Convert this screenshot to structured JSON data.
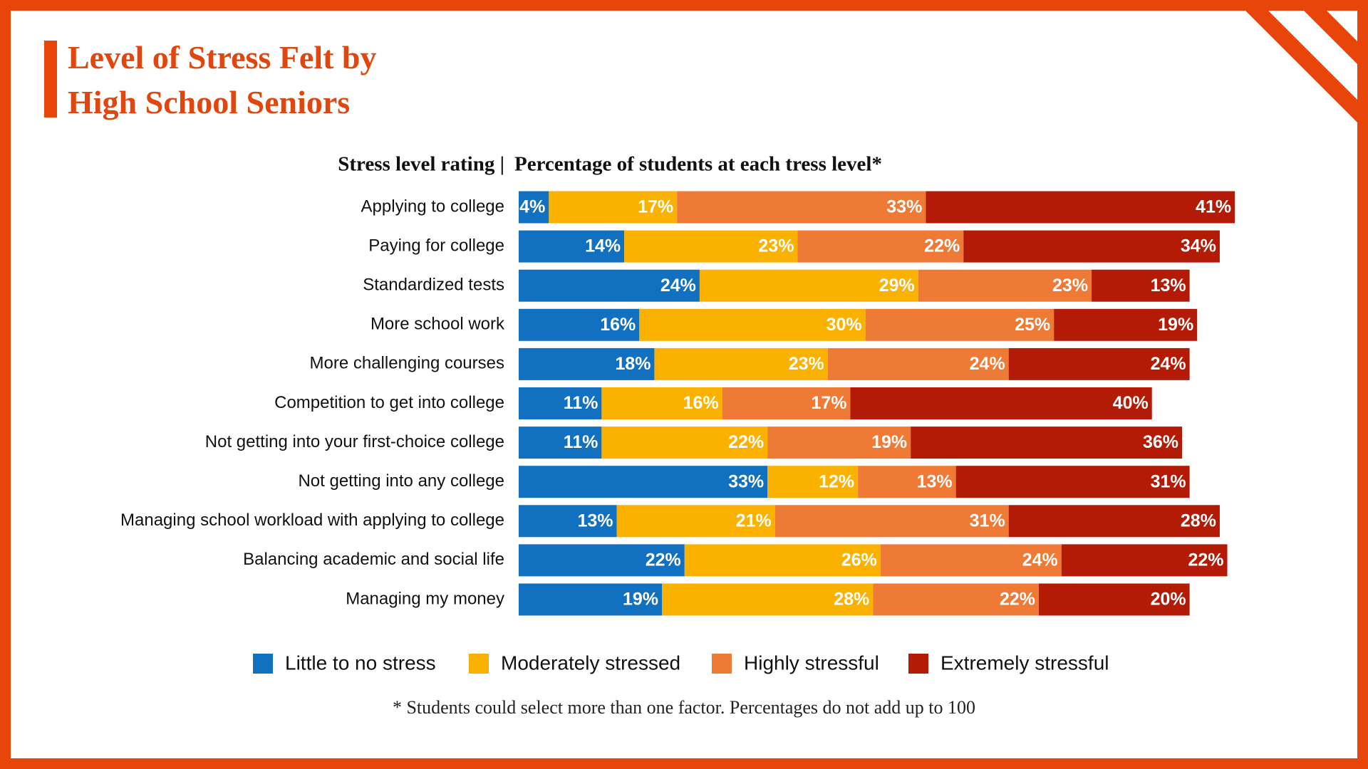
{
  "chart_data": {
    "type": "stacked-barh",
    "title": [
      "Level of Stress Felt by",
      "High School Seniors"
    ],
    "category_header": "Stress level rating |",
    "value_header": "Percentage of students at each tress level*",
    "footnote": "* Students could select more than one factor. Percentages do not add up to 100",
    "categories": [
      "Applying to college",
      "Paying for college",
      "Standardized tests",
      "More school work",
      "More challenging courses",
      "Competition to get into college",
      "Not getting into your first-choice college",
      "Not getting into any college",
      "Managing school workload with applying to college",
      "Balancing academic and social life",
      "Managing my money"
    ],
    "series": [
      {
        "name": "Little to no stress",
        "color": "#1170c0",
        "values": [
          4,
          14,
          24,
          16,
          18,
          11,
          11,
          33,
          13,
          22,
          19
        ],
        "value_labels": [
          "4%",
          "14%",
          "24%",
          "16%",
          "18%",
          "11%",
          "11%",
          "33%",
          "13%",
          "22%",
          "19%"
        ]
      },
      {
        "name": "Moderately stressed",
        "color": "#fbb100",
        "values": [
          17,
          23,
          29,
          30,
          23,
          16,
          22,
          12,
          21,
          26,
          28
        ],
        "value_labels": [
          "17%",
          "23%",
          "29%",
          "30%",
          "23%",
          "16%",
          "22%",
          "12%",
          "21%",
          "26%",
          "28%"
        ]
      },
      {
        "name": "Highly stressful",
        "color": "#ef7a35",
        "values": [
          33,
          22,
          23,
          25,
          24,
          17,
          19,
          13,
          31,
          24,
          22
        ],
        "value_labels": [
          "33%",
          "22%",
          "23%",
          "25%",
          "24%",
          "17%",
          "19%",
          "13%",
          "31%",
          "24%",
          "22%"
        ]
      },
      {
        "name": "Extremely stressful",
        "color": "#b31b06",
        "values": [
          41,
          34,
          13,
          19,
          24,
          40,
          36,
          31,
          28,
          22,
          20
        ],
        "value_labels": [
          "41%",
          "34%",
          "13%",
          "19%",
          "24%",
          "40%",
          "36%",
          "31%",
          "28%",
          "22%",
          "20%"
        ]
      }
    ]
  }
}
